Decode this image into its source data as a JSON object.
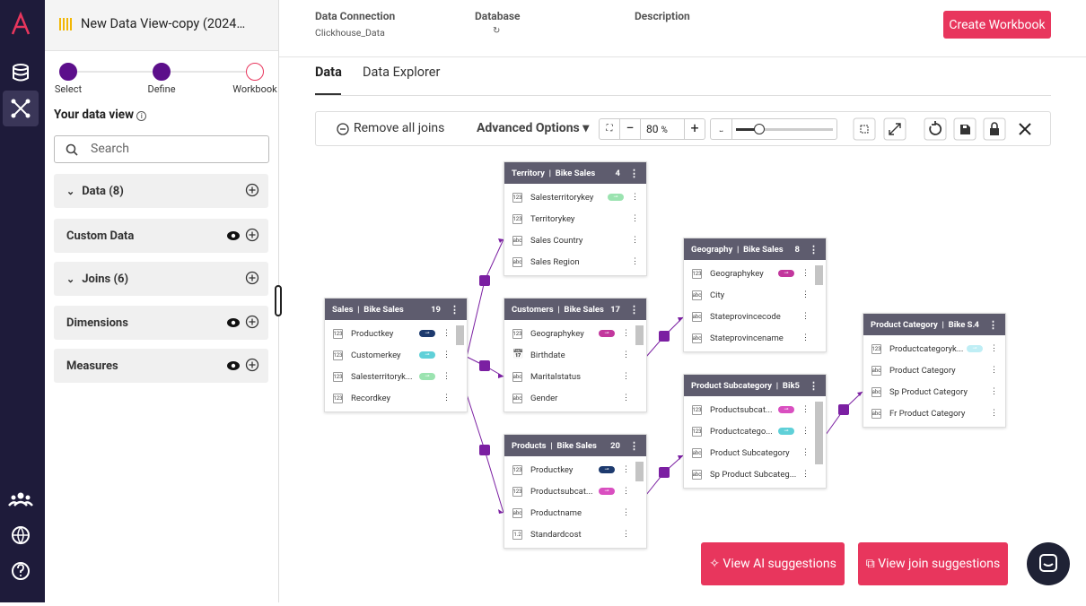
{
  "header": {
    "title": "New Data View-copy (2024…"
  },
  "steps": [
    "Select",
    "Define",
    "Workbook"
  ],
  "sidebar": {
    "heading": "Your data view",
    "search_placeholder": "Search",
    "sections": [
      "Data (8)",
      "Custom Data",
      "Joins (6)",
      "Dimensions",
      "Measures"
    ]
  },
  "topbar": {
    "fields": [
      {
        "label": "Data Connection",
        "value": "Clickhouse_Data"
      },
      {
        "label": "Database"
      },
      {
        "label": "Description"
      }
    ],
    "button": "Create Workbook"
  },
  "tabs": [
    "Data",
    "Data Explorer"
  ],
  "toolbar": {
    "remove": "Remove all joins",
    "advanced": "Advanced Options",
    "zoom": 80,
    "zoom_unit": "%"
  },
  "tables": [
    {
      "title": "Territory  |  Bike Sales",
      "count": 4,
      "fields": [
        {
          "type": "123",
          "name": "Salesterritorykey",
          "key": "#9be3b0"
        },
        {
          "type": "123",
          "name": "Territorykey"
        },
        {
          "type": "abc",
          "name": "Sales Country"
        },
        {
          "type": "abc",
          "name": "Sales Region"
        }
      ]
    },
    {
      "title": "Customers  |  Bike Sales",
      "count": 17,
      "fields": [
        {
          "type": "123",
          "name": "Geographykey",
          "key": "#c2379d"
        },
        {
          "name": "Birthdate"
        },
        {
          "type": "abc",
          "name": "Maritalstatus"
        },
        {
          "type": "abc",
          "name": "Gender"
        }
      ]
    },
    {
      "title": "Products  |  Bike Sales",
      "count": 20,
      "fields": [
        {
          "type": "123",
          "name": "Productkey",
          "key": "#1d3a6e"
        },
        {
          "type": "123",
          "name": "Productsubcat...",
          "key": "#d94fc0"
        },
        {
          "type": "abc",
          "name": "Productname"
        },
        {
          "type": "1.2",
          "name": "Standardcost"
        }
      ]
    },
    {
      "title": "Sales  |  Bike Sales",
      "count": 19,
      "fields": [
        {
          "type": "123",
          "name": "Productkey",
          "key": "#1d3a6e"
        },
        {
          "type": "123",
          "name": "Customerkey",
          "key": "#5fd0d8"
        },
        {
          "type": "123",
          "name": "Salesterritoryk...",
          "key": "#9be3b0"
        },
        {
          "type": "123",
          "name": "Recordkey"
        }
      ]
    },
    {
      "title": "Geography  |  Bike Sales",
      "count": 8,
      "fields": [
        {
          "type": "123",
          "name": "Geographykey",
          "key": "#c2379d"
        },
        {
          "type": "abc",
          "name": "City"
        },
        {
          "type": "abc",
          "name": "Stateprovincecode"
        },
        {
          "type": "abc",
          "name": "Stateprovincename"
        }
      ]
    },
    {
      "title": "Product Subcategory  |  Bik...",
      "count": 5,
      "fields": [
        {
          "type": "123",
          "name": "Productsubcat...",
          "key": "#d94fc0"
        },
        {
          "type": "123",
          "name": "Productcatego...",
          "key": "#5fd0d8"
        },
        {
          "type": "abc",
          "name": "Product Subcategory"
        },
        {
          "type": "abc",
          "name": "Sp Product Subcateg..."
        }
      ]
    },
    {
      "title": "Product Category  |  Bike S...",
      "count": 4,
      "fields": [
        {
          "type": "123",
          "name": "Productcategoryk...",
          "key": "#bfeef5"
        },
        {
          "type": "abc",
          "name": "Product Category"
        },
        {
          "type": "abc",
          "name": "Sp Product Category"
        },
        {
          "type": "abc",
          "name": "Fr Product Category"
        }
      ]
    }
  ],
  "buttons": {
    "ai": "View AI suggestions",
    "join": "View join suggestions"
  }
}
